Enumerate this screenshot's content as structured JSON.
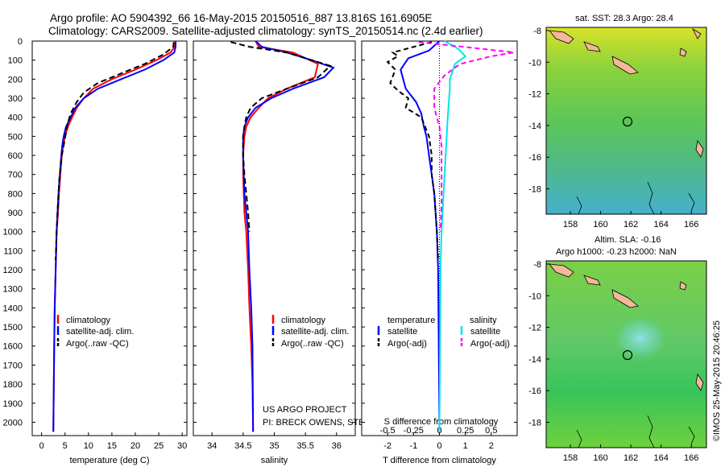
{
  "header": {
    "line1": "Argo profile: AO 5904392_66 16-May-2015 20150516_887 13.816S 161.6905E",
    "line2": "Climatology: CARS2009. Satellite-adjusted climatology: synTS_20150514.nc (2.4d earlier)"
  },
  "colors": {
    "climatology": "#ff0000",
    "satellite": "#0000ff",
    "argo": "#000000",
    "salinity_satellite": "#00e5ee",
    "salinity_argo": "#ff00ff"
  },
  "chart_data": [
    {
      "type": "line",
      "xlabel": "temperature (deg C)",
      "xlim": [
        -2,
        31
      ],
      "xticks": [
        "0",
        "5",
        "10",
        "15",
        "20",
        "25",
        "30"
      ],
      "ylim": [
        0,
        2070
      ],
      "yticks": [
        "0",
        "100",
        "200",
        "300",
        "400",
        "500",
        "600",
        "700",
        "800",
        "900",
        "1000",
        "1100",
        "1200",
        "1300",
        "1400",
        "1500",
        "1600",
        "1700",
        "1800",
        "1900",
        "2000"
      ],
      "legend": [
        "climatology",
        "satellite-adj. clim.",
        "Argo(..raw -QC)"
      ],
      "series": [
        {
          "name": "climatology",
          "x": [
            28.6,
            28.4,
            27.5,
            24.5,
            20,
            15,
            11,
            9,
            7.5,
            6.5,
            5.6,
            5,
            4.6,
            4.3,
            4,
            3.7,
            3.5,
            3.2,
            3,
            2.8,
            2.7,
            2.6,
            2.5
          ],
          "y": [
            0,
            30,
            60,
            100,
            150,
            200,
            250,
            300,
            350,
            400,
            450,
            500,
            550,
            600,
            700,
            800,
            900,
            1000,
            1200,
            1400,
            1600,
            1800,
            2050
          ]
        },
        {
          "name": "satellite-adj. clim.",
          "x": [
            28.6,
            28.6,
            28.3,
            26,
            22,
            17,
            12,
            9,
            7.2,
            6.2,
            5.2,
            4.7,
            4.4,
            4.2,
            3.9,
            3.6,
            3.4,
            3.2,
            3,
            2.8,
            2.7,
            2.6,
            2.5
          ],
          "y": [
            0,
            30,
            60,
            100,
            150,
            200,
            250,
            300,
            350,
            400,
            450,
            500,
            550,
            600,
            700,
            800,
            900,
            1000,
            1200,
            1400,
            1600,
            1800,
            2050
          ]
        },
        {
          "name": "Argo(..raw -QC)",
          "x": [
            28.2,
            28.1,
            26,
            22,
            17,
            12,
            9,
            7.5,
            6.2,
            5.6,
            5.2,
            4.7,
            4.3,
            4.1,
            3.8,
            3.6,
            3.4,
            3.2,
            3
          ],
          "y": [
            5,
            30,
            70,
            120,
            170,
            220,
            270,
            320,
            380,
            430,
            480,
            550,
            600,
            650,
            720,
            800,
            900,
            1000,
            1150
          ]
        }
      ]
    },
    {
      "type": "line",
      "xlabel": "salinity",
      "xlim": [
        33.7,
        36.3
      ],
      "xticks": [
        "34",
        "34.5",
        "35",
        "35.5",
        "36"
      ],
      "ylim": [
        0,
        2070
      ],
      "legend": [
        "climatology",
        "satellite-adj. clim.",
        "Argo(..raw -QC)"
      ],
      "annotation_lines": [
        "US ARGO PROJECT",
        "PI: BRECK OWENS, STEVE JAYNE, P.E. ROBBINS"
      ],
      "series": [
        {
          "name": "climatology",
          "x": [
            34.7,
            34.75,
            35.3,
            35.7,
            35.65,
            35.2,
            34.9,
            34.75,
            34.62,
            34.55,
            34.52,
            34.5,
            34.5,
            34.51,
            34.52,
            34.55,
            34.58,
            34.6,
            34.63,
            34.65,
            34.66
          ],
          "y": [
            0,
            30,
            60,
            120,
            190,
            250,
            300,
            350,
            400,
            450,
            500,
            600,
            700,
            800,
            900,
            1000,
            1200,
            1400,
            1600,
            1800,
            2050
          ]
        },
        {
          "name": "satellite-adj. clim.",
          "x": [
            34.7,
            34.8,
            35.2,
            35.6,
            35.95,
            35.8,
            35.3,
            34.95,
            34.7,
            34.58,
            34.52,
            34.5,
            34.5,
            34.51,
            34.52,
            34.55,
            34.58,
            34.6,
            34.63,
            34.65,
            34.66
          ],
          "y": [
            0,
            30,
            60,
            100,
            140,
            190,
            250,
            300,
            350,
            400,
            450,
            500,
            600,
            700,
            800,
            900,
            1000,
            1200,
            1400,
            1600,
            2050
          ]
        },
        {
          "name": "Argo(..raw -QC)",
          "x": [
            34.3,
            34.6,
            35.2,
            35.6,
            35.9,
            35.7,
            35.2,
            34.8,
            34.62,
            34.55,
            34.52,
            34.5,
            34.5,
            34.52,
            34.55,
            34.58,
            34.6
          ],
          "y": [
            5,
            30,
            60,
            100,
            130,
            190,
            250,
            300,
            350,
            400,
            450,
            500,
            600,
            700,
            800,
            900,
            1000
          ]
        }
      ]
    },
    {
      "type": "line",
      "xlabel": "T difference from climatology",
      "xlabel_top": "S difference from climatology",
      "xlim": [
        -3,
        3
      ],
      "xticks": [
        "-2",
        "-1",
        "0",
        "1",
        "2"
      ],
      "xlim_top": [
        -0.75,
        0.75
      ],
      "xticks_top": [
        "-0.5",
        "-0.25",
        "0",
        "0.25",
        "0.5"
      ],
      "ylim": [
        0,
        2070
      ],
      "legend_headers": [
        "temperature",
        "salinity"
      ],
      "legend": [
        "satellite",
        "Argo(-adj)",
        "satellite",
        "Argo(-adj)"
      ],
      "series": [
        {
          "name": "temperature satellite",
          "axis": "T",
          "x": [
            0,
            -0.4,
            -1.2,
            -1.5,
            -1.3,
            -0.9,
            -0.7,
            -0.6,
            -0.5,
            -0.4,
            -0.3,
            -0.2,
            -0.15,
            -0.1,
            -0.05,
            0
          ],
          "y": [
            0,
            50,
            90,
            150,
            250,
            320,
            380,
            450,
            500,
            600,
            700,
            800,
            900,
            1000,
            1200,
            2050
          ]
        },
        {
          "name": "temperature Argo(-adj)",
          "axis": "T",
          "x": [
            -0.3,
            -1.8,
            -1.6,
            -2,
            -1.7,
            -1.9,
            -1.6,
            -1.2,
            -1.3,
            -0.7,
            -0.4,
            -0.3,
            -0.3,
            -0.2,
            -0.15,
            -0.1,
            -0.05
          ],
          "y": [
            5,
            60,
            80,
            110,
            150,
            220,
            260,
            300,
            350,
            400,
            500,
            600,
            700,
            800,
            900,
            1000,
            1150
          ]
        },
        {
          "name": "salinity satellite",
          "axis": "S",
          "x": [
            0.05,
            0.18,
            0.25,
            0.15,
            0.12,
            0.1,
            0.1,
            0.08,
            0.06,
            0.04,
            0.02,
            0.01,
            0
          ],
          "y": [
            0,
            40,
            80,
            120,
            170,
            200,
            250,
            400,
            600,
            800,
            1000,
            1200,
            2050
          ]
        },
        {
          "name": "salinity Argo(-adj)",
          "axis": "S",
          "x": [
            -0.2,
            0.4,
            0.72,
            0.5,
            0.2,
            0.05,
            -0.05,
            -0.05,
            0,
            0.02,
            0.02,
            0.02,
            0.01
          ],
          "y": [
            5,
            40,
            60,
            80,
            120,
            180,
            250,
            350,
            450,
            550,
            700,
            850,
            1000
          ]
        }
      ]
    }
  ],
  "maps": {
    "sst": {
      "title": "sat. SST: 28.3 Argo: 28.4",
      "yticks": [
        "-8",
        "-10",
        "-12",
        "-14",
        "-16",
        "-18"
      ],
      "xticks": [
        "158",
        "160",
        "162",
        "164",
        "166"
      ],
      "marker": {
        "lon": 161.69,
        "lat": -13.82
      }
    },
    "sla": {
      "title_line1": "Altim. SLA: -0.16",
      "title_line2": "Argo h1000: -0.23 h2000: NaN",
      "yticks": [
        "-8",
        "-10",
        "-12",
        "-14",
        "-16",
        "-18"
      ],
      "xticks": [
        "158",
        "160",
        "162",
        "164",
        "166"
      ],
      "marker": {
        "lon": 161.69,
        "lat": -13.82
      }
    }
  },
  "credit": "©IMOS 25-May-2015 20:46:25"
}
